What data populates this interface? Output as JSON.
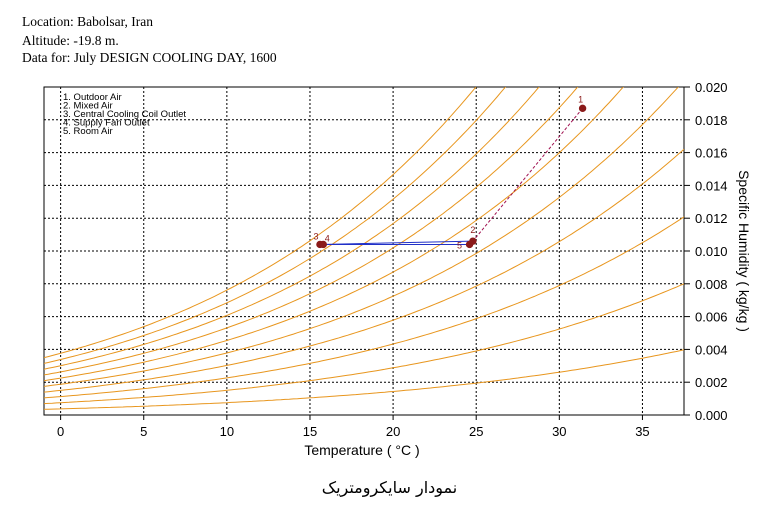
{
  "header": {
    "location": "Location: Babolsar, Iran",
    "altitude": "Altitude: -19.8  m.",
    "data_for": "Data for: July DESIGN COOLING DAY, 1600"
  },
  "caption": "نمودار سایکرومتریک",
  "colors": {
    "saturation_curves": "#e8961e",
    "points": "#8b1a1a",
    "process_line": "#2030c8",
    "dashed_line": "#a01050"
  },
  "chart_data": {
    "type": "scatter",
    "title": "",
    "xlabel": "Temperature ( °C )",
    "ylabel": "Specific Humidity ( kg/kg )",
    "xlim": [
      -1,
      37.5
    ],
    "ylim": [
      0,
      0.02
    ],
    "x_ticks": [
      0,
      5,
      10,
      15,
      20,
      25,
      30,
      35
    ],
    "y_ticks": [
      "0.000",
      "0.002",
      "0.004",
      "0.006",
      "0.008",
      "0.010",
      "0.012",
      "0.014",
      "0.016",
      "0.018",
      "0.020"
    ],
    "grid": true,
    "legend_position": "top-left",
    "legend": [
      "1. Outdoor Air",
      "2. Mixed Air",
      "3. Central Cooling Coil Outlet",
      "4. Supply Fan Outlet",
      "5. Room Air"
    ],
    "relative_humidity_curves": [
      0.1,
      0.2,
      0.3,
      0.4,
      0.5,
      0.6,
      0.7,
      0.8,
      0.9,
      1.0
    ],
    "points": [
      {
        "label": "1",
        "x": 31.4,
        "y": 0.0187
      },
      {
        "label": "2",
        "x": 24.8,
        "y": 0.0106
      },
      {
        "label": "3",
        "x": 15.6,
        "y": 0.0104
      },
      {
        "label": "4",
        "x": 15.8,
        "y": 0.0104
      },
      {
        "label": "5",
        "x": 24.6,
        "y": 0.0104
      }
    ]
  }
}
